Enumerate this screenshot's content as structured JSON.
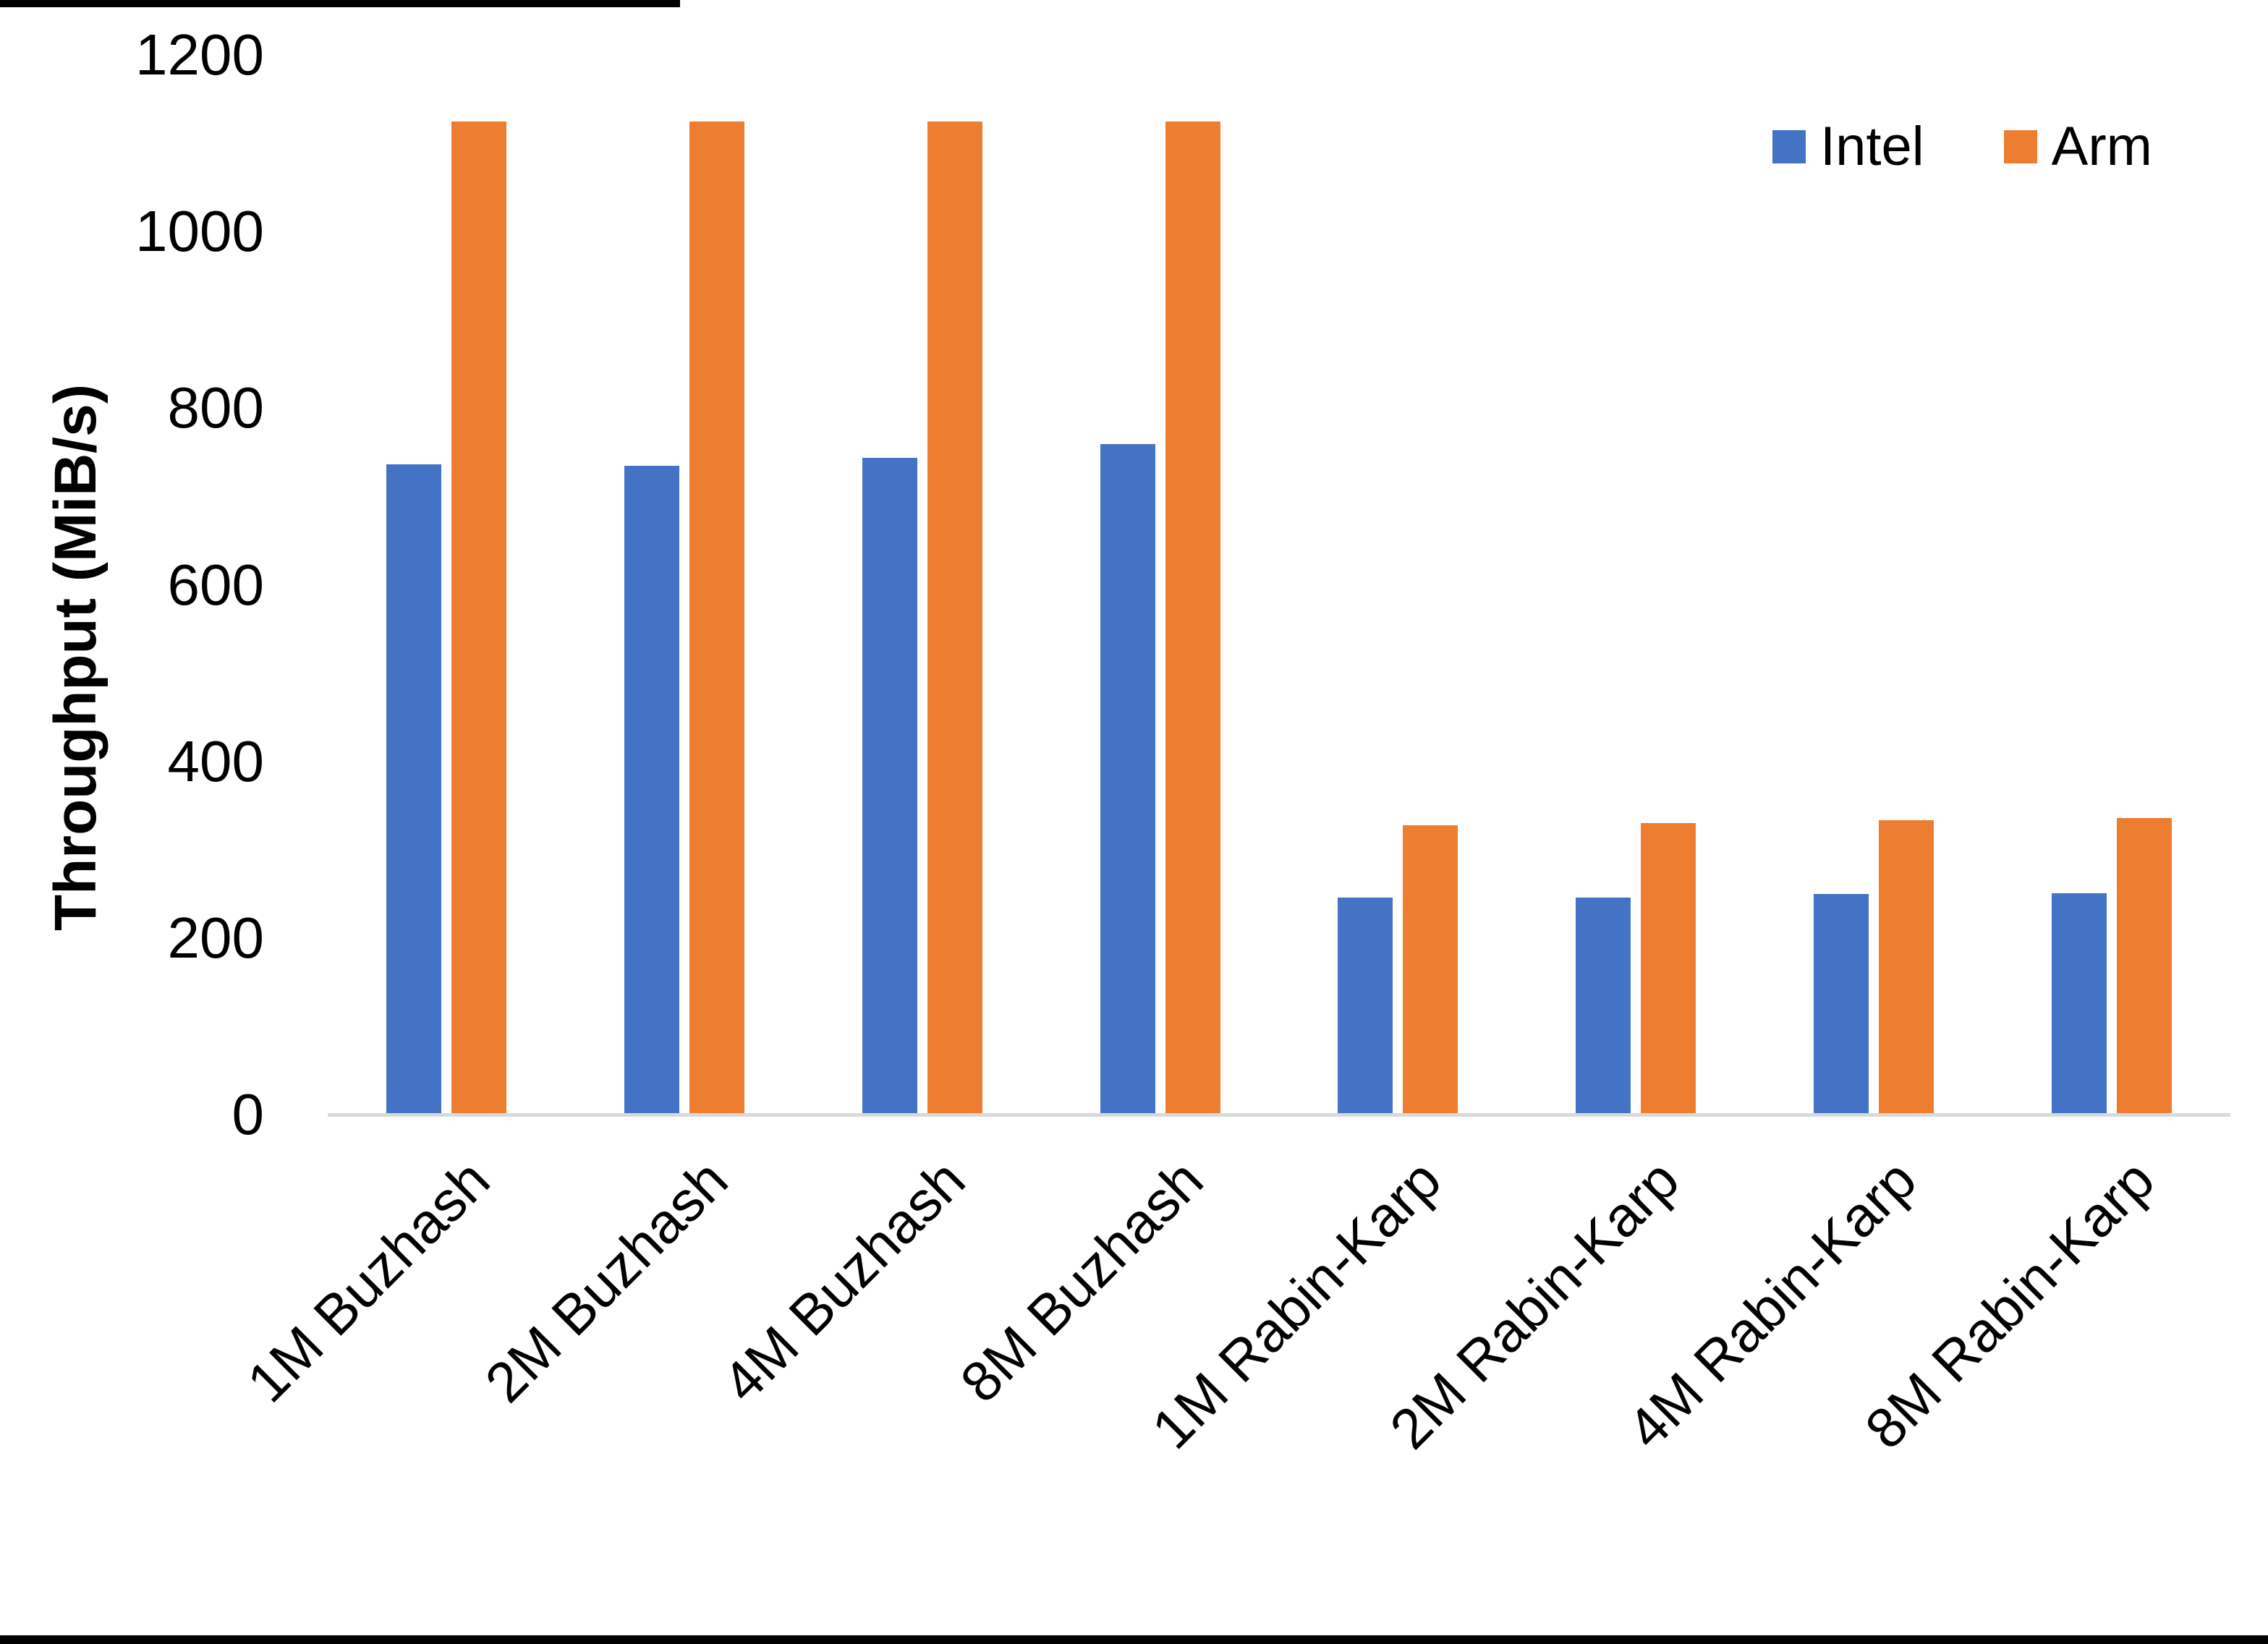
{
  "chart_data": {
    "type": "bar",
    "title": "",
    "xlabel": "",
    "ylabel": "Throughput (MiB/s)",
    "ylim": [
      0,
      1200
    ],
    "yticks": [
      0,
      200,
      400,
      600,
      800,
      1000,
      1200
    ],
    "grid": false,
    "legend_position": "top-right",
    "categories": [
      "1M Buzhash",
      "2M Buzhash",
      "4M Buzhash",
      "8M Buzhash",
      "1M Rabin-Karp",
      "2M Rabin-Karp",
      "4M Rabin-Karp",
      "8M Rabin-Karp"
    ],
    "series": [
      {
        "name": "Intel",
        "color": "#4472C4",
        "values": [
          736,
          735,
          744,
          759,
          246,
          246,
          250,
          251
        ]
      },
      {
        "name": "Arm",
        "color": "#ED7D31",
        "values": [
          1125,
          1125,
          1125,
          1125,
          328,
          330,
          333,
          336
        ]
      }
    ]
  }
}
